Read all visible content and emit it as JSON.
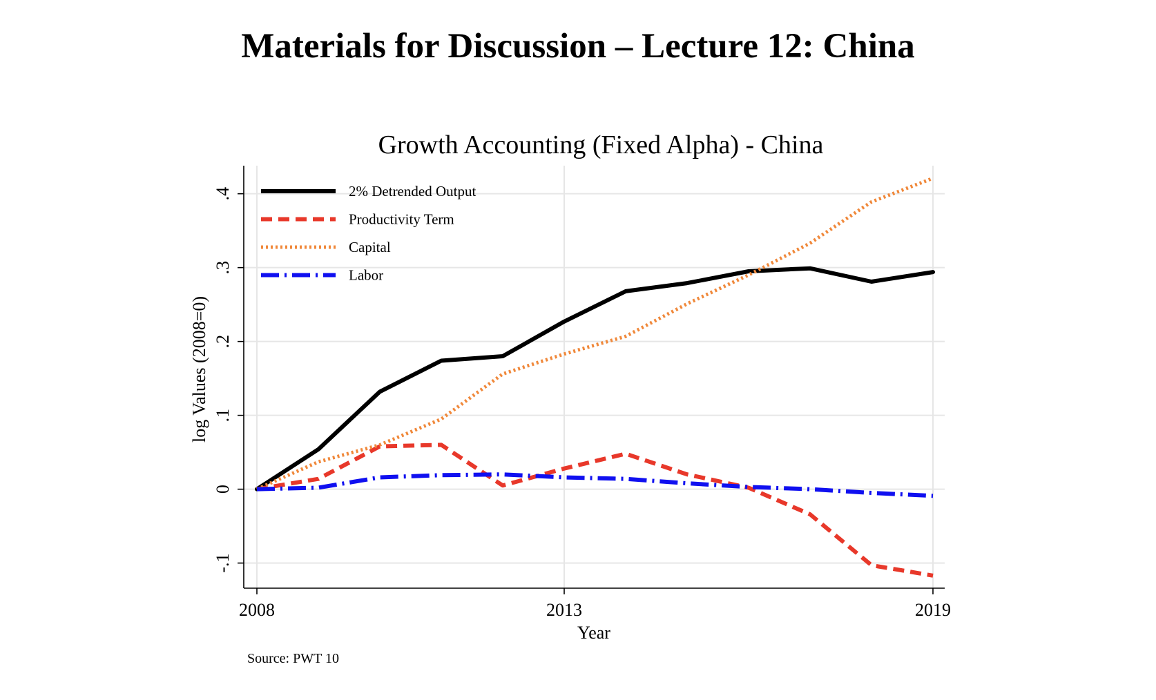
{
  "page": {
    "title": "Materials for Discussion – Lecture 12: China"
  },
  "chart_data": {
    "type": "line",
    "title": "Growth Accounting (Fixed Alpha) - China",
    "xlabel": "Year",
    "ylabel": "log Values (2008=0)",
    "x": [
      2008,
      2009,
      2010,
      2011,
      2012,
      2013,
      2014,
      2015,
      2016,
      2017,
      2018,
      2019
    ],
    "xticks": [
      2008,
      2013,
      2019
    ],
    "xtick_labels": [
      "2008",
      "2013",
      "2019"
    ],
    "xlim": [
      2008,
      2019
    ],
    "ylim": [
      -0.134,
      0.438
    ],
    "yticks": [
      -0.1,
      0,
      0.1,
      0.2,
      0.3,
      0.4
    ],
    "ytick_labels": [
      "-.1",
      "0",
      ".1",
      ".2",
      ".3",
      ".4"
    ],
    "grid": true,
    "legend_position": "top-left",
    "note": "Source: PWT 10",
    "series": [
      {
        "name": "2% Detrended Output",
        "color": "#000000",
        "style": "solid",
        "values": [
          0,
          0.054,
          0.132,
          0.174,
          0.18,
          0.227,
          0.268,
          0.279,
          0.295,
          0.299,
          0.281,
          0.294
        ]
      },
      {
        "name": "Productivity Term",
        "color": "#e8382a",
        "style": "dashed",
        "values": [
          0,
          0.014,
          0.058,
          0.06,
          0.005,
          0.028,
          0.048,
          0.02,
          0.002,
          -0.034,
          -0.103,
          -0.117
        ]
      },
      {
        "name": "Capital",
        "color": "#f0883a",
        "style": "dotted",
        "values": [
          0,
          0.037,
          0.06,
          0.095,
          0.156,
          0.183,
          0.207,
          0.251,
          0.29,
          0.333,
          0.389,
          0.421
        ]
      },
      {
        "name": "Labor",
        "color": "#1010f0",
        "style": "dashdot",
        "values": [
          0,
          0.002,
          0.016,
          0.019,
          0.02,
          0.016,
          0.014,
          0.008,
          0.003,
          0.0,
          -0.005,
          -0.009
        ]
      }
    ]
  }
}
